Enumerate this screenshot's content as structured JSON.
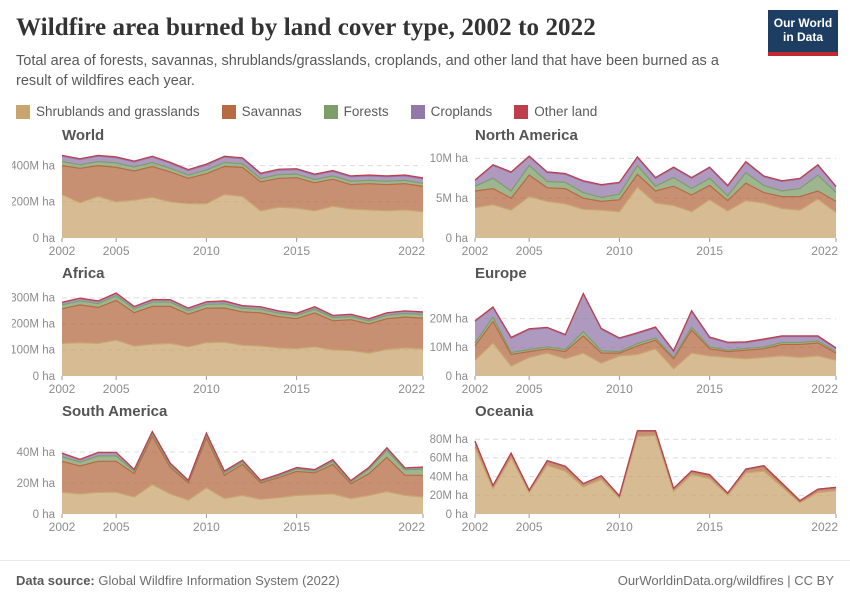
{
  "header": {
    "title": "Wildfire area burned by land cover type, 2002 to 2022",
    "subtitle": "Total area of forests, savannas, shrublands/grasslands, croplands, and other land that have been burned as a result of wildfires each year.",
    "logo": {
      "line1": "Our World",
      "line2": "in Data",
      "bg_color": "#1d3d63",
      "bar_color": "#c2282f"
    }
  },
  "legend": {
    "items": [
      {
        "label": "Shrublands and grasslands",
        "color": "#C9A46F"
      },
      {
        "label": "Savannas",
        "color": "#B66B43"
      },
      {
        "label": "Forests",
        "color": "#7D9E6A"
      },
      {
        "label": "Croplands",
        "color": "#9478AA"
      },
      {
        "label": "Other land",
        "color": "#C03E4A"
      }
    ]
  },
  "footer": {
    "source_label": "Data source:",
    "source_value": " Global Wildfire Information System (2022)",
    "credit_link": "OurWorldinData.org/wildfires",
    "credit_license": " | CC BY"
  },
  "chart_data": {
    "type": "area",
    "stacked": true,
    "unit": "M ha",
    "grid": "dashed horizontal",
    "legend_position": "top",
    "x": [
      2002,
      2003,
      2004,
      2005,
      2006,
      2007,
      2008,
      2009,
      2010,
      2011,
      2012,
      2013,
      2014,
      2015,
      2016,
      2017,
      2018,
      2019,
      2020,
      2021,
      2022
    ],
    "x_tick_labels": [
      "2002",
      "2005",
      "2010",
      "2015",
      "2022"
    ],
    "series_order": [
      "Shrublands and grasslands",
      "Savannas",
      "Forests",
      "Croplands",
      "Other land"
    ],
    "panels": [
      {
        "title": "World",
        "y_ticks": [
          0,
          200,
          400
        ],
        "y_max": 475,
        "ylabel_suffix": "M ha",
        "series": [
          {
            "name": "Shrublands and grasslands",
            "color": "#C9A46F",
            "values": [
              240,
              195,
              230,
              200,
              210,
              225,
              200,
              190,
              190,
              240,
              230,
              150,
              170,
              165,
              150,
              175,
              160,
              155,
              150,
              155,
              145
            ]
          },
          {
            "name": "Savannas",
            "color": "#B66B43",
            "values": [
              160,
              190,
              170,
              190,
              160,
              170,
              165,
              140,
              165,
              155,
              160,
              160,
              160,
              168,
              155,
              150,
              135,
              145,
              145,
              145,
              140
            ]
          },
          {
            "name": "Forests",
            "color": "#7D9E6A",
            "values": [
              22,
              20,
              22,
              25,
              22,
              22,
              20,
              18,
              20,
              22,
              20,
              18,
              20,
              20,
              18,
              18,
              18,
              18,
              18,
              18,
              17
            ]
          },
          {
            "name": "Croplands",
            "color": "#9478AA",
            "values": [
              30,
              28,
              30,
              28,
              28,
              30,
              28,
              25,
              28,
              30,
              28,
              25,
              25,
              25,
              25,
              25,
              25,
              25,
              25,
              25,
              25
            ]
          },
          {
            "name": "Other land",
            "color": "#C03E4A",
            "values": [
              5,
              5,
              5,
              5,
              5,
              5,
              5,
              5,
              5,
              5,
              5,
              5,
              5,
              5,
              5,
              5,
              5,
              5,
              5,
              5,
              5
            ]
          }
        ]
      },
      {
        "title": "North America",
        "y_ticks": [
          0,
          5,
          10
        ],
        "y_max": 10.8,
        "ylabel_suffix": "M ha",
        "series": [
          {
            "name": "Shrublands and grasslands",
            "color": "#C9A46F",
            "values": [
              3.8,
              4.2,
              3.5,
              5.2,
              4.6,
              4.3,
              3.6,
              3.5,
              3.3,
              6.4,
              4.4,
              4.1,
              3.3,
              4.8,
              3.4,
              4.7,
              4.4,
              3.7,
              3.5,
              4.9,
              3.2
            ]
          },
          {
            "name": "Savannas",
            "color": "#B66B43",
            "values": [
              2.1,
              2.0,
              1.5,
              2.7,
              1.7,
              1.9,
              1.4,
              1.1,
              1.5,
              1.6,
              1.5,
              2.4,
              2.1,
              1.8,
              1.3,
              2.2,
              1.3,
              1.5,
              1.7,
              1.0,
              1.4
            ]
          },
          {
            "name": "Forests",
            "color": "#7D9E6A",
            "values": [
              0.6,
              1.3,
              0.9,
              1.2,
              0.8,
              0.8,
              0.7,
              0.5,
              0.7,
              1.1,
              0.6,
              1.1,
              0.8,
              0.9,
              0.6,
              1.3,
              0.9,
              0.7,
              1.0,
              2.0,
              1.1
            ]
          },
          {
            "name": "Croplands",
            "color": "#9478AA",
            "values": [
              0.7,
              1.6,
              2.3,
              1.1,
              1.1,
              1.0,
              1.4,
              1.5,
              1.4,
              1.0,
              1.0,
              1.2,
              1.3,
              1.3,
              1.2,
              1.3,
              1.1,
              1.2,
              1.2,
              1.2,
              0.7
            ]
          },
          {
            "name": "Other land",
            "color": "#C03E4A",
            "values": [
              0.1,
              0.1,
              0.1,
              0.1,
              0.1,
              0.1,
              0.1,
              0.1,
              0.1,
              0.1,
              0.1,
              0.1,
              0.1,
              0.1,
              0.1,
              0.1,
              0.1,
              0.1,
              0.1,
              0.1,
              0.1
            ]
          }
        ]
      },
      {
        "title": "Africa",
        "y_ticks": [
          0,
          100,
          200,
          300
        ],
        "y_max": 330,
        "ylabel_suffix": "M ha",
        "series": [
          {
            "name": "Shrublands and grasslands",
            "color": "#C9A46F",
            "values": [
              125,
              128,
              125,
              138,
              115,
              122,
              125,
              112,
              128,
              130,
              118,
              115,
              108,
              105,
              112,
              100,
              98,
              88,
              102,
              108,
              104
            ]
          },
          {
            "name": "Savannas",
            "color": "#B66B43",
            "values": [
              133,
              145,
              138,
              152,
              128,
              145,
              142,
              125,
              132,
              131,
              128,
              127,
              120,
              115,
              130,
              112,
              118,
              112,
              118,
              118,
              118
            ]
          },
          {
            "name": "Forests",
            "color": "#7D9E6A",
            "values": [
              15,
              16,
              15,
              18,
              14,
              16,
              16,
              14,
              15,
              16,
              14,
              14,
              13,
              12,
              14,
              12,
              12,
              11,
              13,
              14,
              14
            ]
          },
          {
            "name": "Croplands",
            "color": "#9478AA",
            "values": [
              8,
              8,
              8,
              9,
              8,
              8,
              8,
              8,
              8,
              9,
              8,
              8,
              7,
              7,
              8,
              7,
              7,
              7,
              8,
              8,
              8
            ]
          },
          {
            "name": "Other land",
            "color": "#C03E4A",
            "values": [
              2,
              2,
              2,
              2,
              2,
              2,
              2,
              2,
              2,
              2,
              2,
              2,
              2,
              2,
              2,
              2,
              2,
              2,
              2,
              2,
              2
            ]
          }
        ]
      },
      {
        "title": "Europe",
        "y_ticks": [
          0,
          10,
          20
        ],
        "y_max": 30,
        "ylabel_suffix": "M ha",
        "series": [
          {
            "name": "Shrublands and grasslands",
            "color": "#C9A46F",
            "values": [
              5.5,
              11.5,
              3.5,
              6.5,
              8,
              6,
              8,
              4.5,
              7,
              7.5,
              9.5,
              2.5,
              8,
              7,
              6.5,
              6,
              6.5,
              7,
              6.5,
              7,
              5.5
            ]
          },
          {
            "name": "Savannas",
            "color": "#B66B43",
            "values": [
              5,
              7.5,
              4,
              2,
              1.5,
              2.5,
              6,
              3.5,
              1,
              3,
              3,
              3.5,
              8,
              2.5,
              2,
              3,
              3,
              4,
              4.5,
              4.5,
              2.5
            ]
          },
          {
            "name": "Forests",
            "color": "#7D9E6A",
            "values": [
              1,
              1.5,
              0.7,
              0.7,
              0.7,
              0.7,
              1.5,
              0.8,
              0.5,
              0.8,
              0.8,
              0.5,
              1,
              0.6,
              0.5,
              0.6,
              0.6,
              0.7,
              0.7,
              0.7,
              0.5
            ]
          },
          {
            "name": "Croplands",
            "color": "#9478AA",
            "values": [
              7.5,
              3.3,
              5,
              7,
              6.5,
              5,
              13,
              7.5,
              4.5,
              3.5,
              3.5,
              2,
              5.5,
              3.2,
              2.5,
              2,
              2.5,
              2,
              2,
              1.5,
              1
            ]
          },
          {
            "name": "Other land",
            "color": "#C03E4A",
            "values": [
              0.3,
              0.3,
              0.3,
              0.3,
              0.3,
              0.3,
              0.3,
              0.3,
              0.3,
              0.3,
              0.3,
              0.3,
              0.3,
              0.3,
              0.3,
              0.3,
              0.3,
              0.3,
              0.3,
              0.3,
              0.3
            ]
          }
        ]
      },
      {
        "title": "South America",
        "y_ticks": [
          0,
          20,
          40
        ],
        "y_max": 55.5,
        "ylabel_suffix": "M ha",
        "series": [
          {
            "name": "Shrublands and grasslands",
            "color": "#C9A46F",
            "values": [
              14,
              13,
              14,
              14,
              11,
              19,
              13,
              9,
              17,
              10,
              12,
              9.5,
              10.5,
              12,
              12.5,
              13,
              10,
              12,
              14.5,
              12,
              11
            ]
          },
          {
            "name": "Savannas",
            "color": "#B66B43",
            "values": [
              20,
              18,
              20,
              20,
              15,
              31,
              17,
              11,
              32,
              15,
              20,
              10.5,
              13,
              15.5,
              14,
              19,
              9.5,
              14,
              22,
              13,
              14
            ]
          },
          {
            "name": "Forests",
            "color": "#7D9E6A",
            "values": [
              3,
              2.5,
              3.5,
              3.5,
              1.5,
              2,
              1.5,
              1,
              2,
              1.5,
              1.5,
              1,
              1.2,
              1.5,
              1.2,
              1.8,
              1.2,
              3,
              4.5,
              3.5,
              4
            ]
          },
          {
            "name": "Croplands",
            "color": "#9478AA",
            "values": [
              2,
              1.5,
              2,
              2,
              1,
              1,
              1,
              0.5,
              1,
              1,
              1,
              0.5,
              0.6,
              0.7,
              0.7,
              1,
              0.6,
              0.8,
              1.5,
              1,
              1
            ]
          },
          {
            "name": "Other land",
            "color": "#C03E4A",
            "values": [
              0.3,
              0.3,
              0.3,
              0.3,
              0.3,
              0.3,
              0.3,
              0.3,
              0.3,
              0.3,
              0.3,
              0.3,
              0.3,
              0.3,
              0.3,
              0.3,
              0.3,
              0.3,
              0.3,
              0.3,
              0.3
            ]
          }
        ]
      },
      {
        "title": "Oceania",
        "y_ticks": [
          0,
          20,
          40,
          60,
          80
        ],
        "y_max": 92,
        "ylabel_suffix": "M ha",
        "series": [
          {
            "name": "Shrublands and grasslands",
            "color": "#C9A46F",
            "values": [
              71,
              27,
              60,
              23,
              52,
              46,
              29,
              37,
              17,
              83,
              84,
              24,
              42,
              38,
              20,
              44,
              46,
              29,
              12,
              23,
              25
            ]
          },
          {
            "name": "Savannas",
            "color": "#B66B43",
            "values": [
              6.5,
              3,
              4.5,
              2,
              4.5,
              4.5,
              3,
              3.5,
              2,
              5.5,
              4.5,
              3,
              3.5,
              3.5,
              2,
              3.5,
              5,
              3,
              1.5,
              3,
              3
            ]
          },
          {
            "name": "Forests",
            "color": "#7D9E6A",
            "values": [
              0.3,
              0.2,
              0.3,
              0.2,
              0.3,
              0.3,
              0.2,
              0.2,
              0.2,
              0.3,
              0.3,
              0.2,
              0.3,
              0.3,
              0.2,
              0.3,
              0.5,
              1,
              0.5,
              0.3,
              0.3
            ]
          },
          {
            "name": "Croplands",
            "color": "#9478AA",
            "values": [
              0.2,
              0.2,
              0.2,
              0.2,
              0.2,
              0.2,
              0.2,
              0.2,
              0.2,
              0.2,
              0.2,
              0.2,
              0.2,
              0.2,
              0.2,
              0.2,
              0.2,
              0.2,
              0.2,
              0.2,
              0.2
            ]
          },
          {
            "name": "Other land",
            "color": "#C03E4A",
            "values": [
              0.1,
              0.1,
              0.1,
              0.1,
              0.1,
              0.1,
              0.1,
              0.1,
              0.1,
              0.1,
              0.1,
              0.1,
              0.1,
              0.1,
              0.1,
              0.1,
              0.1,
              0.1,
              0.1,
              0.1,
              0.1
            ]
          }
        ]
      }
    ]
  }
}
